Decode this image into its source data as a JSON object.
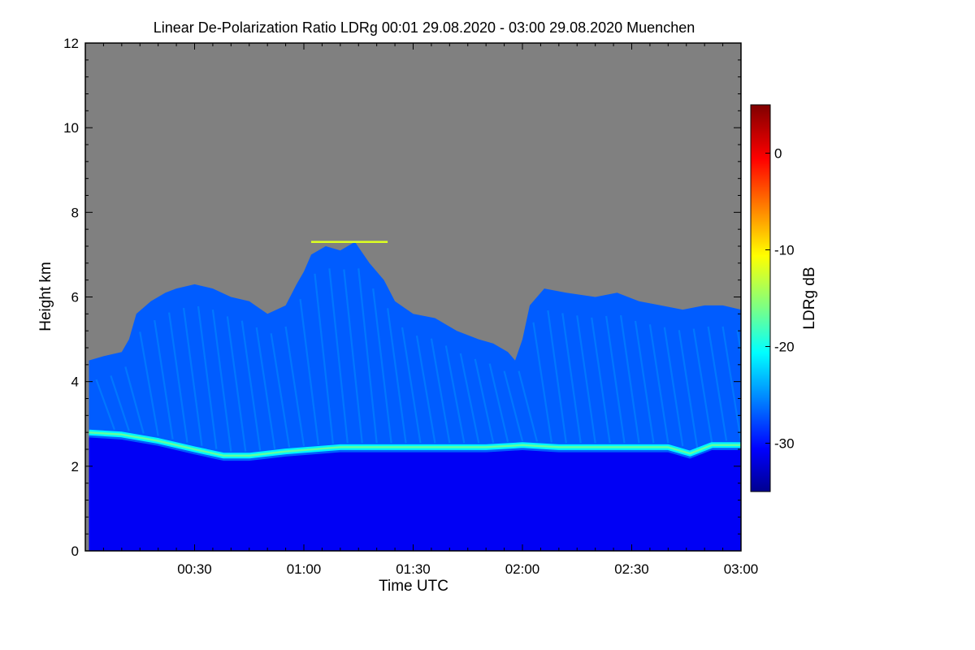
{
  "chart_data": {
    "type": "heatmap",
    "title": "Linear De-Polarization Ratio LDRg   00:01 29.08.2020 - 03:00 29.08.2020 Muenchen",
    "xlabel": "Time UTC",
    "ylabel": "Height km",
    "x_range_minutes_utc": [
      1,
      180
    ],
    "y_range_km": [
      0,
      12
    ],
    "x_ticks": [
      {
        "minute": 30,
        "label": "00:30"
      },
      {
        "minute": 60,
        "label": "01:00"
      },
      {
        "minute": 90,
        "label": "01:30"
      },
      {
        "minute": 120,
        "label": "02:00"
      },
      {
        "minute": 150,
        "label": "02:30"
      },
      {
        "minute": 180,
        "label": "03:00"
      }
    ],
    "y_ticks": [
      {
        "value": 0,
        "label": "0"
      },
      {
        "value": 2,
        "label": "2"
      },
      {
        "value": 4,
        "label": "4"
      },
      {
        "value": 6,
        "label": "6"
      },
      {
        "value": 8,
        "label": "8"
      },
      {
        "value": 10,
        "label": "10"
      },
      {
        "value": 12,
        "label": "12"
      }
    ],
    "colorbar": {
      "label": "LDRg dB",
      "range_db": [
        -35,
        5
      ],
      "ticks": [
        {
          "value": 0,
          "label": "0"
        },
        {
          "value": -10,
          "label": "-10"
        },
        {
          "value": -20,
          "label": "-20"
        },
        {
          "value": -30,
          "label": "-30"
        }
      ]
    },
    "no_signal_color": "#808080",
    "layer_top_km": [
      [
        1,
        4.5
      ],
      [
        5,
        4.6
      ],
      [
        10,
        4.7
      ],
      [
        12,
        5.0
      ],
      [
        14,
        5.6
      ],
      [
        18,
        5.9
      ],
      [
        22,
        6.1
      ],
      [
        25,
        6.2
      ],
      [
        30,
        6.3
      ],
      [
        35,
        6.2
      ],
      [
        40,
        6.0
      ],
      [
        45,
        5.9
      ],
      [
        50,
        5.6
      ],
      [
        55,
        5.8
      ],
      [
        58,
        6.3
      ],
      [
        60,
        6.6
      ],
      [
        62,
        7.0
      ],
      [
        66,
        7.2
      ],
      [
        70,
        7.1
      ],
      [
        74,
        7.3
      ],
      [
        78,
        6.8
      ],
      [
        82,
        6.4
      ],
      [
        85,
        5.9
      ],
      [
        90,
        5.6
      ],
      [
        96,
        5.5
      ],
      [
        102,
        5.2
      ],
      [
        108,
        5.0
      ],
      [
        112,
        4.9
      ],
      [
        116,
        4.7
      ],
      [
        118,
        4.5
      ],
      [
        120,
        5.0
      ],
      [
        122,
        5.8
      ],
      [
        126,
        6.2
      ],
      [
        132,
        6.1
      ],
      [
        140,
        6.0
      ],
      [
        146,
        6.1
      ],
      [
        152,
        5.9
      ],
      [
        158,
        5.8
      ],
      [
        164,
        5.7
      ],
      [
        170,
        5.8
      ],
      [
        175,
        5.8
      ],
      [
        180,
        5.7
      ]
    ],
    "bright_band_km": [
      [
        1,
        2.8
      ],
      [
        10,
        2.75
      ],
      [
        20,
        2.6
      ],
      [
        30,
        2.4
      ],
      [
        38,
        2.25
      ],
      [
        45,
        2.25
      ],
      [
        55,
        2.35
      ],
      [
        70,
        2.45
      ],
      [
        90,
        2.45
      ],
      [
        110,
        2.45
      ],
      [
        120,
        2.5
      ],
      [
        130,
        2.45
      ],
      [
        150,
        2.45
      ],
      [
        160,
        2.45
      ],
      [
        166,
        2.3
      ],
      [
        172,
        2.5
      ],
      [
        180,
        2.5
      ]
    ],
    "bright_band_ldr_db": -21,
    "below_band_ldr_db": -31,
    "above_band_ldr_db": -27,
    "fall_streak_ldr_db": -24,
    "thin_layer": {
      "x_start_min": 62,
      "x_end_min": 83,
      "height_km": 7.3,
      "ldr_db": -12
    }
  }
}
